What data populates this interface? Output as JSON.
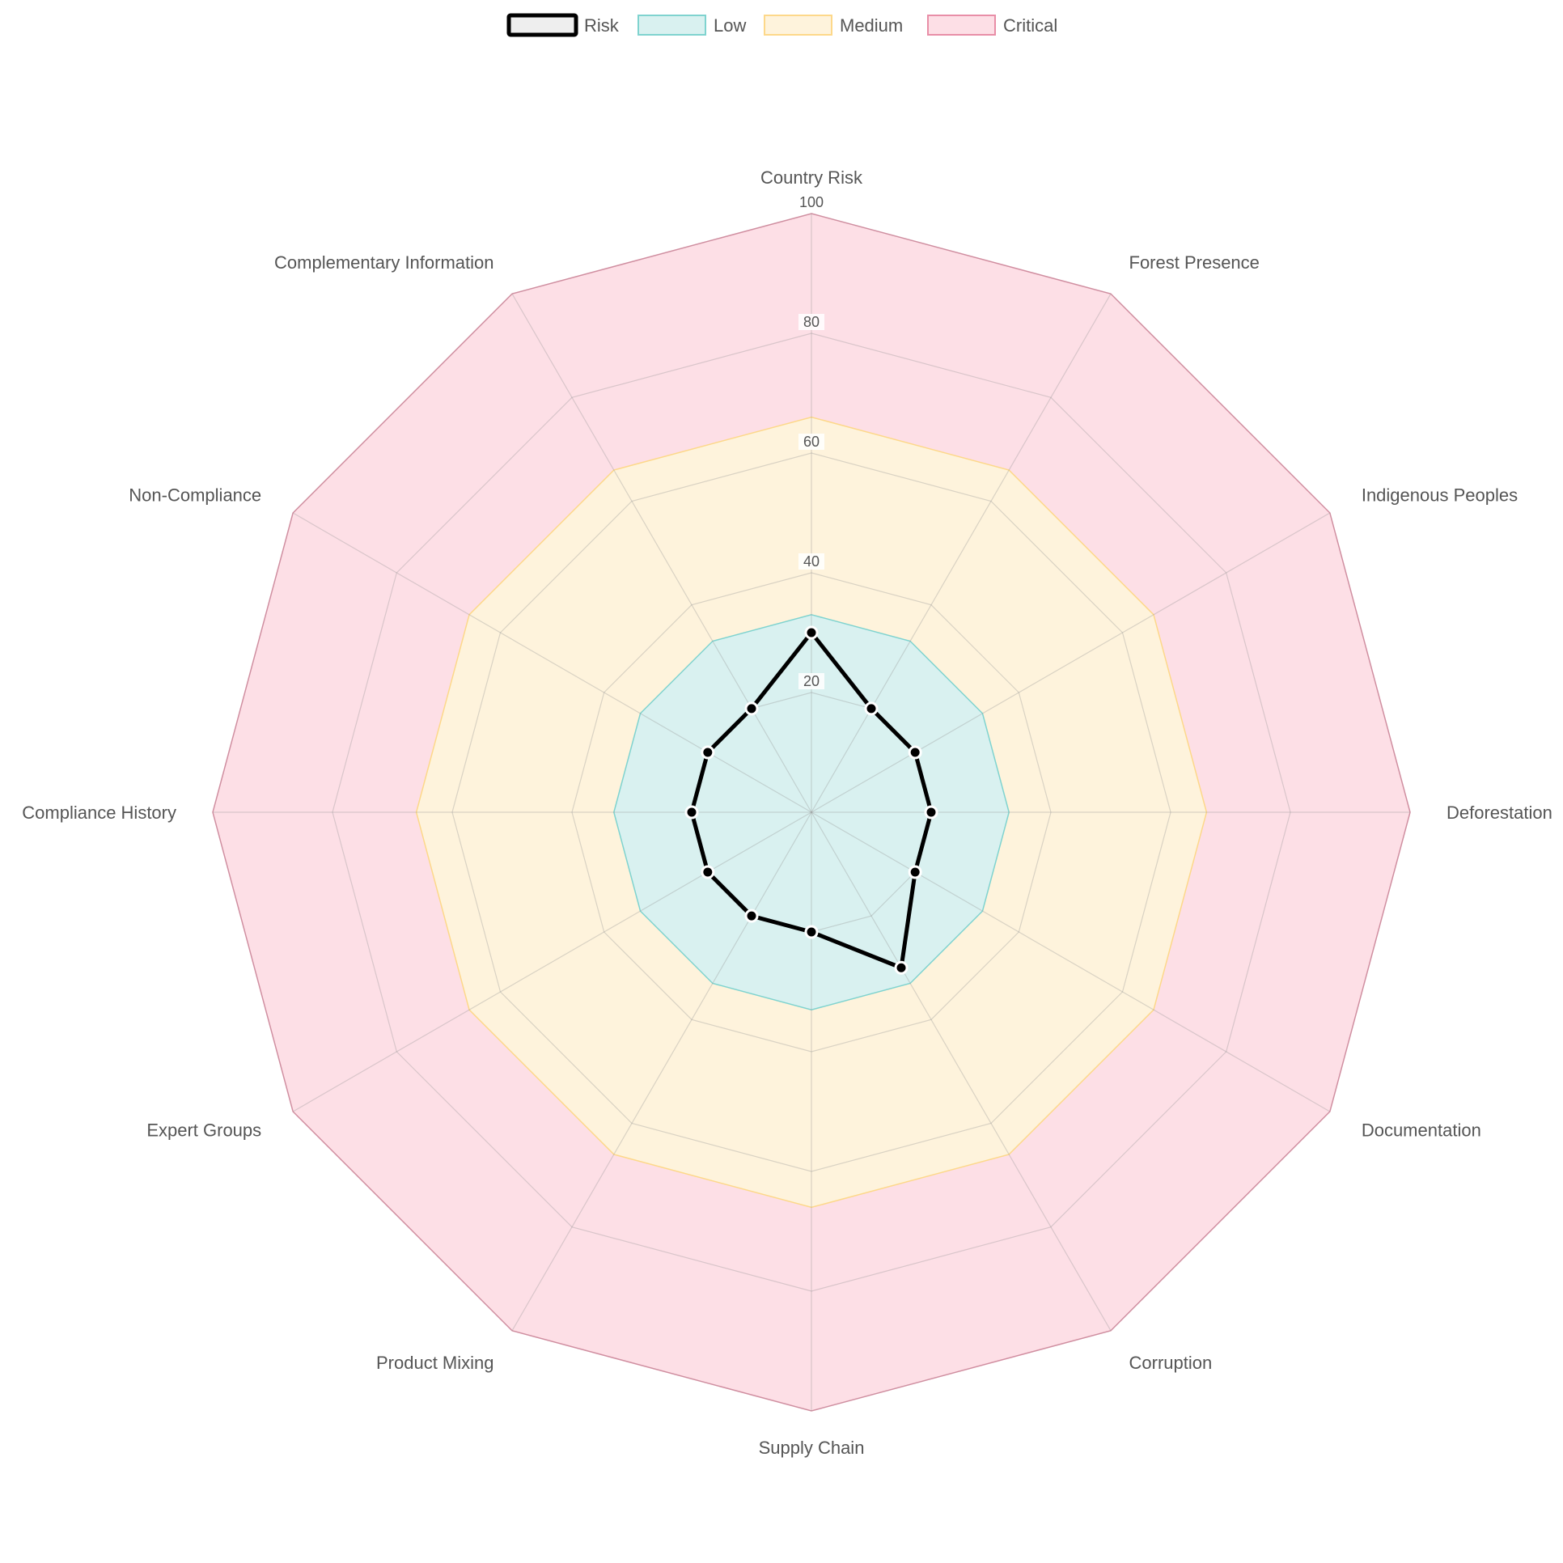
{
  "chart_data": {
    "type": "radar",
    "r_range": [
      0,
      100
    ],
    "r_ticks": [
      "20",
      "40",
      "60",
      "80",
      "100"
    ],
    "axes": [
      "Country Risk",
      "Forest Presence",
      "Indigenous Peoples",
      "Deforestation",
      "Documentation",
      "Corruption",
      "Supply Chain",
      "Product Mixing",
      "Expert Groups",
      "Compliance History",
      "Non-Compliance",
      "Complementary Information"
    ],
    "series": [
      {
        "name": "Risk",
        "values": [
          30,
          20,
          20,
          20,
          20,
          30,
          20,
          20,
          20,
          20,
          20,
          20
        ],
        "color": "#000000"
      }
    ],
    "bands": [
      {
        "name": "Low",
        "value": 33,
        "fill": "#d9f1f0",
        "stroke": "#7fd3cf"
      },
      {
        "name": "Medium",
        "value": 66,
        "fill": "#fef3dc",
        "stroke": "#fdd88a"
      },
      {
        "name": "Critical",
        "value": 100,
        "fill": "#fddfe6",
        "stroke": "#e88ea7"
      }
    ],
    "legend": [
      "Risk",
      "Low",
      "Medium",
      "Critical"
    ],
    "legend_position": "top-center"
  }
}
